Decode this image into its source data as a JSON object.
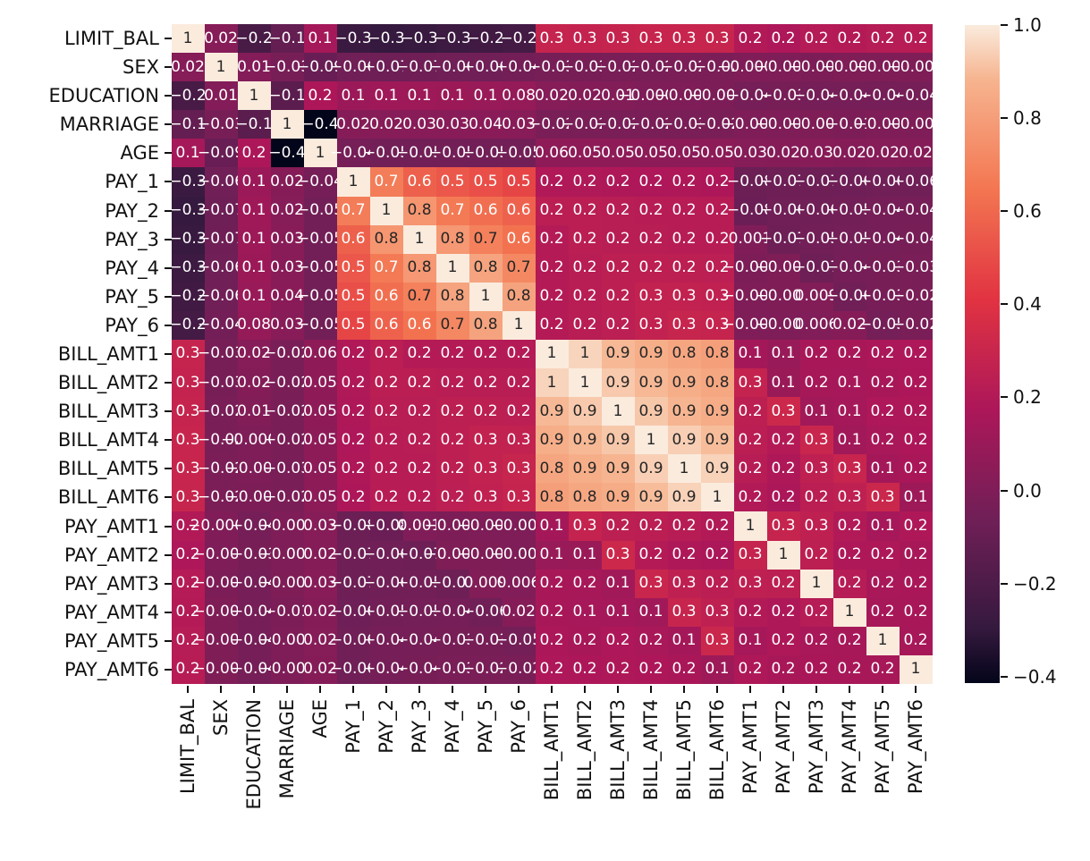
{
  "chart_data": {
    "type": "heatmap",
    "title": "",
    "xlabel": "",
    "ylabel": "",
    "annotation_format": "1-significant-digit",
    "legend_position": "right-colorbar",
    "grid": false,
    "categories": [
      "LIMIT_BAL",
      "SEX",
      "EDUCATION",
      "MARRIAGE",
      "AGE",
      "PAY_1",
      "PAY_2",
      "PAY_3",
      "PAY_4",
      "PAY_5",
      "PAY_6",
      "BILL_AMT1",
      "BILL_AMT2",
      "BILL_AMT3",
      "BILL_AMT4",
      "BILL_AMT5",
      "BILL_AMT6",
      "PAY_AMT1",
      "PAY_AMT2",
      "PAY_AMT3",
      "PAY_AMT4",
      "PAY_AMT5",
      "PAY_AMT6"
    ],
    "matrix": [
      [
        1,
        0.024,
        -0.219,
        -0.108,
        0.145,
        -0.271,
        -0.296,
        -0.286,
        -0.267,
        -0.249,
        -0.235,
        0.285,
        0.278,
        0.283,
        0.294,
        0.295,
        0.29,
        0.195,
        0.178,
        0.21,
        0.203,
        0.217,
        0.219
      ],
      [
        0.024,
        1,
        0.014,
        -0.031,
        -0.091,
        -0.058,
        -0.071,
        -0.066,
        -0.06,
        -0.056,
        -0.044,
        -0.034,
        -0.031,
        -0.024,
        -0.022,
        -0.018,
        -0.017,
        -0.0002,
        -0.0013,
        -0.0086,
        -0.0022,
        -0.0017,
        -0.0028
      ],
      [
        -0.219,
        0.014,
        1,
        -0.143,
        0.175,
        0.105,
        0.122,
        0.114,
        0.109,
        0.097,
        0.082,
        0.023,
        0.018,
        0.013,
        -0.0005,
        -0.0075,
        -0.0091,
        -0.037,
        -0.03,
        -0.04,
        -0.038,
        -0.04,
        -0.037
      ],
      [
        -0.108,
        -0.031,
        -0.143,
        1,
        -0.414,
        0.02,
        0.024,
        0.033,
        0.033,
        0.036,
        0.034,
        -0.023,
        -0.022,
        -0.024,
        -0.023,
        -0.026,
        -0.021,
        -0.006,
        -0.0082,
        -0.0035,
        -0.013,
        -0.0011,
        -0.0066
      ],
      [
        0.145,
        -0.091,
        0.175,
        -0.414,
        1,
        -0.039,
        -0.049,
        -0.053,
        -0.049,
        -0.054,
        -0.048,
        0.056,
        0.054,
        0.054,
        0.051,
        0.049,
        0.048,
        0.026,
        0.022,
        0.029,
        0.021,
        0.023,
        0.019
      ],
      [
        -0.271,
        -0.058,
        0.105,
        0.02,
        -0.039,
        1,
        0.672,
        0.574,
        0.539,
        0.509,
        0.474,
        0.187,
        0.19,
        0.18,
        0.179,
        0.181,
        0.177,
        -0.079,
        -0.07,
        -0.071,
        -0.064,
        -0.058,
        -0.059
      ],
      [
        -0.296,
        -0.071,
        0.122,
        0.024,
        -0.049,
        0.672,
        1,
        0.767,
        0.662,
        0.623,
        0.576,
        0.234,
        0.235,
        0.224,
        0.222,
        0.221,
        0.219,
        -0.081,
        -0.059,
        -0.056,
        -0.047,
        -0.037,
        -0.036
      ],
      [
        -0.286,
        -0.066,
        0.114,
        0.033,
        -0.053,
        0.574,
        0.767,
        1,
        0.777,
        0.687,
        0.632,
        0.208,
        0.237,
        0.227,
        0.225,
        0.222,
        0.219,
        0.0013,
        -0.067,
        -0.053,
        -0.046,
        -0.036,
        -0.035
      ],
      [
        -0.267,
        -0.06,
        0.109,
        0.033,
        -0.049,
        0.539,
        0.662,
        0.777,
        1,
        0.82,
        0.716,
        0.203,
        0.226,
        0.245,
        0.246,
        0.243,
        0.239,
        -0.0093,
        -0.0019,
        -0.069,
        -0.043,
        -0.033,
        -0.027
      ],
      [
        -0.249,
        -0.056,
        0.097,
        0.036,
        -0.054,
        0.509,
        0.623,
        0.687,
        0.82,
        1,
        0.817,
        0.207,
        0.226,
        0.244,
        0.271,
        0.269,
        0.262,
        -0.0061,
        -0.0032,
        0.0091,
        -0.058,
        -0.033,
        -0.023
      ],
      [
        -0.235,
        -0.044,
        0.082,
        0.034,
        -0.048,
        0.474,
        0.576,
        0.632,
        0.716,
        0.817,
        1,
        0.207,
        0.227,
        0.241,
        0.266,
        0.29,
        0.285,
        -0.0014,
        -0.0052,
        0.0058,
        0.019,
        -0.046,
        -0.024
      ],
      [
        0.285,
        -0.034,
        0.023,
        -0.023,
        0.056,
        0.187,
        0.234,
        0.208,
        0.203,
        0.207,
        0.207,
        1,
        0.951,
        0.892,
        0.86,
        0.83,
        0.803,
        0.14,
        0.099,
        0.157,
        0.158,
        0.167,
        0.179
      ],
      [
        0.278,
        -0.031,
        0.018,
        -0.022,
        0.054,
        0.19,
        0.235,
        0.237,
        0.226,
        0.226,
        0.227,
        0.951,
        1,
        0.928,
        0.892,
        0.86,
        0.832,
        0.28,
        0.101,
        0.151,
        0.147,
        0.158,
        0.174
      ],
      [
        0.283,
        -0.024,
        0.013,
        -0.024,
        0.054,
        0.18,
        0.224,
        0.227,
        0.245,
        0.244,
        0.241,
        0.892,
        0.928,
        1,
        0.924,
        0.884,
        0.853,
        0.244,
        0.317,
        0.13,
        0.143,
        0.179,
        0.182
      ],
      [
        0.294,
        -0.022,
        -0.0005,
        -0.023,
        0.051,
        0.179,
        0.222,
        0.225,
        0.246,
        0.271,
        0.266,
        0.86,
        0.892,
        0.924,
        1,
        0.94,
        0.901,
        0.233,
        0.207,
        0.3,
        0.13,
        0.16,
        0.177
      ],
      [
        0.295,
        -0.018,
        -0.0075,
        -0.026,
        0.049,
        0.181,
        0.221,
        0.222,
        0.243,
        0.269,
        0.29,
        0.83,
        0.86,
        0.884,
        0.94,
        1,
        0.946,
        0.222,
        0.181,
        0.252,
        0.293,
        0.141,
        0.164
      ],
      [
        0.29,
        -0.017,
        -0.0091,
        -0.021,
        0.048,
        0.177,
        0.219,
        0.219,
        0.239,
        0.262,
        0.285,
        0.803,
        0.832,
        0.853,
        0.901,
        0.946,
        1,
        0.2,
        0.173,
        0.233,
        0.2503,
        0.308,
        0.115
      ],
      [
        0.195,
        -0.0002,
        -0.037,
        -0.006,
        0.026,
        -0.079,
        -0.081,
        0.0013,
        -0.0093,
        -0.0061,
        -0.0014,
        0.14,
        0.28,
        0.244,
        0.233,
        0.222,
        0.2,
        1,
        0.285,
        0.252,
        0.2,
        0.148,
        0.186
      ],
      [
        0.178,
        -0.0013,
        -0.03,
        -0.0082,
        0.022,
        -0.07,
        -0.059,
        -0.067,
        -0.0019,
        -0.0032,
        -0.0052,
        0.099,
        0.101,
        0.317,
        0.207,
        0.181,
        0.173,
        0.285,
        1,
        0.244,
        0.18,
        0.181,
        0.158
      ],
      [
        0.21,
        -0.0086,
        -0.04,
        -0.0035,
        0.029,
        -0.071,
        -0.056,
        -0.053,
        -0.069,
        0.0091,
        0.0058,
        0.157,
        0.151,
        0.13,
        0.3,
        0.252,
        0.233,
        0.252,
        0.244,
        1,
        0.216,
        0.159,
        0.163
      ],
      [
        0.203,
        -0.0022,
        -0.038,
        -0.013,
        0.021,
        -0.064,
        -0.047,
        -0.046,
        -0.043,
        -0.058,
        0.019,
        0.158,
        0.147,
        0.143,
        0.13,
        0.293,
        0.2503,
        0.2,
        0.18,
        0.216,
        1,
        0.151,
        0.157
      ],
      [
        0.217,
        -0.0017,
        -0.04,
        -0.0011,
        0.023,
        -0.058,
        -0.037,
        -0.036,
        -0.033,
        -0.033,
        -0.046,
        0.167,
        0.158,
        0.179,
        0.16,
        0.141,
        0.308,
        0.148,
        0.181,
        0.159,
        0.151,
        1,
        0.154
      ],
      [
        0.219,
        -0.0028,
        -0.037,
        -0.0066,
        0.019,
        -0.059,
        -0.036,
        -0.035,
        -0.027,
        -0.023,
        -0.024,
        0.179,
        0.174,
        0.182,
        0.177,
        0.164,
        0.115,
        0.186,
        0.158,
        0.163,
        0.157,
        0.154,
        1
      ]
    ],
    "vmin": -0.414,
    "vmax": 1.0,
    "colorbar_ticks": [
      1.0,
      0.8,
      0.6,
      0.4,
      0.2,
      0.0,
      -0.2,
      -0.4
    ],
    "colorbar_tick_labels": [
      "1.0",
      "0.8",
      "0.6",
      "0.4",
      "0.2",
      "0.0",
      "−0.2",
      "−0.4"
    ],
    "colormap": {
      "name": "rocket",
      "stops": [
        [
          0.0,
          "#03051A"
        ],
        [
          0.083,
          "#35193E"
        ],
        [
          0.25,
          "#701F57"
        ],
        [
          0.417,
          "#AD1759"
        ],
        [
          0.583,
          "#E13342"
        ],
        [
          0.75,
          "#F37651"
        ],
        [
          0.917,
          "#F6B48F"
        ],
        [
          1.0,
          "#FAEBDD"
        ]
      ]
    }
  },
  "colors": {
    "background": "#FFFFFF",
    "tick_text": "#111111",
    "annotation_dark": "#262626",
    "annotation_light": "#FFFFFF"
  }
}
